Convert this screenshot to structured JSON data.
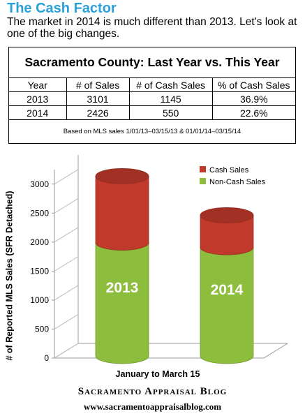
{
  "header": {
    "title": "The Cash Factor",
    "intro_line1": "The market in 2014 is much different than 2013. Let's look at",
    "intro_line2": "one of the big changes."
  },
  "table": {
    "title": "Sacramento County: Last Year vs. This Year",
    "columns": [
      "Year",
      "# of Sales",
      "# of Cash Sales",
      "% of Cash Sales"
    ],
    "rows": [
      [
        "2013",
        "3101",
        "1145",
        "36.9%"
      ],
      [
        "2014",
        "2426",
        "550",
        "22.6%"
      ]
    ],
    "note": "Based on MLS sales 1/01/13–03/15/13 & 01/01/14–03/15/14"
  },
  "chart_data": {
    "type": "bar",
    "stacked": true,
    "categories": [
      "2013",
      "2014"
    ],
    "series": [
      {
        "name": "Non-Cash Sales",
        "values": [
          1956,
          1876
        ],
        "color": "#8dbd3c"
      },
      {
        "name": "Cash Sales",
        "values": [
          1145,
          550
        ],
        "color": "#c0392b"
      }
    ],
    "xlabel": "January to March 15",
    "ylabel": "# of Reported MLS Sales (SFR Detached)",
    "ylim": [
      0,
      3250
    ],
    "yticks": [
      "0",
      "500",
      "1000",
      "1500",
      "2000",
      "2500",
      "3000"
    ],
    "legend": "top-right",
    "grid": false
  },
  "footer": {
    "blog_name": "Sacramento Appraisal Blog",
    "url": "www.sacramentoappraisalblog.com"
  }
}
